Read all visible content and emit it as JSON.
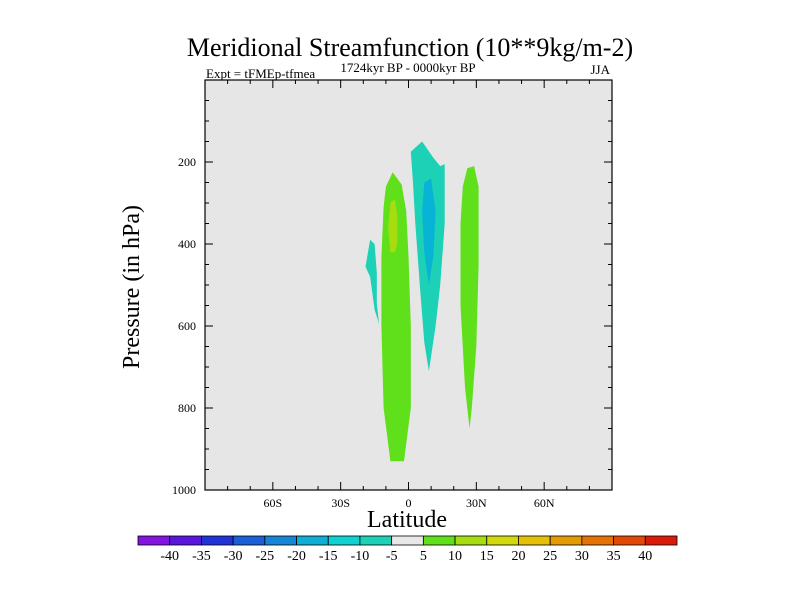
{
  "chart_data": {
    "type": "contour",
    "title": "Meridional Streamfunction (10**9kg/m-2)",
    "subtitle_left": "Expt = tFMEp-tfmea",
    "subtitle_center": "1724kyr BP - 0000kyr BP",
    "subtitle_right": "JJA",
    "xlabel": "Latitude",
    "ylabel": "Pressure (in hPa)",
    "xlim": [
      -90,
      90
    ],
    "ylim": [
      1000,
      0
    ],
    "xticks": [
      {
        "value": -60,
        "label": "60S"
      },
      {
        "value": -30,
        "label": "30S"
      },
      {
        "value": 0,
        "label": "0"
      },
      {
        "value": 30,
        "label": "30N"
      },
      {
        "value": 60,
        "label": "60N"
      }
    ],
    "yticks": [
      {
        "value": 200,
        "label": "200"
      },
      {
        "value": 400,
        "label": "400"
      },
      {
        "value": 600,
        "label": "600"
      },
      {
        "value": 800,
        "label": "800"
      },
      {
        "value": 1000,
        "label": "1000"
      }
    ],
    "background_color": "#e6e6e6",
    "regions": [
      {
        "name": "positive-cell-main",
        "level": "5 to 10",
        "color": "#5fe01a",
        "points": [
          [
            -8,
            930
          ],
          [
            -11,
            800
          ],
          [
            -12,
            600
          ],
          [
            -12,
            430
          ],
          [
            -11,
            310
          ],
          [
            -10,
            260
          ],
          [
            -7,
            225
          ],
          [
            -3,
            255
          ],
          [
            -1,
            320
          ],
          [
            0,
            430
          ],
          [
            1,
            600
          ],
          [
            1,
            800
          ],
          [
            -2,
            930
          ]
        ]
      },
      {
        "name": "positive-core",
        "level": "10 to 15",
        "color": "#a5dd10",
        "points": [
          [
            -8,
            420
          ],
          [
            -9,
            360
          ],
          [
            -8,
            300
          ],
          [
            -6,
            290
          ],
          [
            -5,
            330
          ],
          [
            -5,
            400
          ],
          [
            -6,
            420
          ]
        ]
      },
      {
        "name": "negative-cell-center",
        "level": "-10 to -5",
        "color": "#1cd1b5",
        "points": [
          [
            1,
            175
          ],
          [
            6,
            150
          ],
          [
            11,
            190
          ],
          [
            14,
            210
          ],
          [
            16,
            205
          ],
          [
            16,
            350
          ],
          [
            14,
            500
          ],
          [
            12,
            600
          ],
          [
            9,
            710
          ],
          [
            7,
            640
          ],
          [
            5,
            500
          ],
          [
            3,
            350
          ],
          [
            2,
            250
          ]
        ]
      },
      {
        "name": "negative-core",
        "level": "-15 to -10",
        "color": "#08b4d6",
        "points": [
          [
            7,
            250
          ],
          [
            10,
            240
          ],
          [
            12,
            320
          ],
          [
            11,
            430
          ],
          [
            9,
            500
          ],
          [
            7,
            420
          ],
          [
            6,
            320
          ]
        ]
      },
      {
        "name": "positive-cell-north",
        "level": "5 to 10",
        "color": "#5fe01a",
        "points": [
          [
            26,
            215
          ],
          [
            29,
            210
          ],
          [
            31,
            260
          ],
          [
            31,
            450
          ],
          [
            30,
            650
          ],
          [
            28,
            800
          ],
          [
            27,
            850
          ],
          [
            25,
            750
          ],
          [
            23,
            550
          ],
          [
            23,
            350
          ],
          [
            24,
            260
          ]
        ]
      },
      {
        "name": "negative-cell-south",
        "level": "-10 to -5",
        "color": "#1cd1b5",
        "points": [
          [
            -17,
            390
          ],
          [
            -15,
            400
          ],
          [
            -14,
            470
          ],
          [
            -14,
            545
          ],
          [
            -13,
            595
          ],
          [
            -15,
            560
          ],
          [
            -17,
            480
          ],
          [
            -19,
            455
          ]
        ]
      }
    ],
    "colorbar": {
      "labels": [
        "-40",
        "-35",
        "-30",
        "-25",
        "-20",
        "-15",
        "-10",
        "-5",
        "5",
        "10",
        "15",
        "20",
        "25",
        "30",
        "35",
        "40"
      ],
      "colors": [
        "#8414df",
        "#5b16dd",
        "#2233d6",
        "#1a5fd6",
        "#1785d6",
        "#0eaed6",
        "#0ed2d2",
        "#1cd1b5",
        "#e8e8e8",
        "#5fe01a",
        "#a5dd10",
        "#d2d80c",
        "#e5c006",
        "#e49a05",
        "#e47206",
        "#e24908",
        "#dc1a0a"
      ]
    }
  }
}
